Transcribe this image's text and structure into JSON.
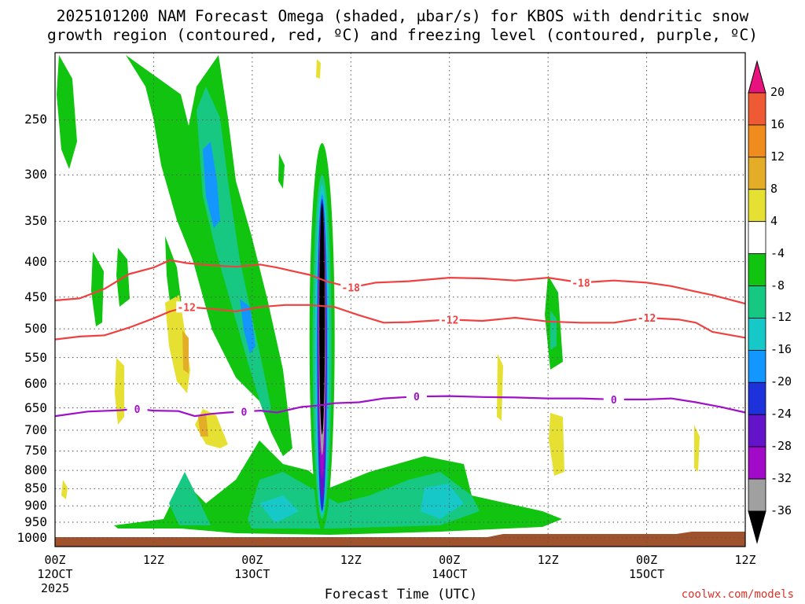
{
  "title": {
    "line1": "2025101200 NAM Forecast Omega (shaded, μbar/s) for KBOS with dendritic snow",
    "line2": "growth region (contoured, red, ºC) and freezing level (contoured, purple, ºC)"
  },
  "credit": "coolwx.com/models",
  "chart_data": {
    "type": "heatmap",
    "title": "2025101200 NAM Forecast Omega (shaded, μbar/s) for KBOS with dendritic snow growth region (contoured, red, ºC) and freezing level (contoured, purple, ºC)",
    "xlabel": "Forecast Time (UTC)",
    "year_label": "2025",
    "x_ticks": [
      {
        "line1": "00Z",
        "line2": "12OCT",
        "hour": 0
      },
      {
        "line1": "12Z",
        "line2": "",
        "hour": 12
      },
      {
        "line1": "00Z",
        "line2": "13OCT",
        "hour": 24
      },
      {
        "line1": "12Z",
        "line2": "",
        "hour": 36
      },
      {
        "line1": "00Z",
        "line2": "14OCT",
        "hour": 48
      },
      {
        "line1": "12Z",
        "line2": "",
        "hour": 60
      },
      {
        "line1": "00Z",
        "line2": "15OCT",
        "hour": 72
      },
      {
        "line1": "12Z",
        "line2": "",
        "hour": 84
      }
    ],
    "y_ticks": [
      250,
      300,
      350,
      400,
      450,
      500,
      550,
      600,
      650,
      700,
      750,
      800,
      850,
      900,
      950,
      1000
    ],
    "ylim": [
      200,
      1030
    ],
    "xlim_hours": [
      0,
      84
    ],
    "grid": true,
    "colorbar": {
      "labels": [
        20,
        16,
        12,
        8,
        4,
        -4,
        -8,
        -12,
        -16,
        -20,
        -24,
        -28,
        -32,
        -36
      ],
      "colors": [
        "#ff3860",
        "#ee5a33",
        "#f08c1e",
        "#e3ad28",
        "#e6e032",
        "#ffffff",
        "#10c410",
        "#16c882",
        "#16c8c8",
        "#1496ff",
        "#1e32dc",
        "#6414c8",
        "#a00ac8",
        "#a0a0a0"
      ],
      "top_arrow_color": "#e8127e",
      "bottom_arrow_color": "#000000"
    },
    "dendritic_contours": [
      {
        "label": "-18",
        "color": "#f04040",
        "points": [
          [
            0,
            455
          ],
          [
            3,
            452
          ],
          [
            6,
            438
          ],
          [
            9,
            417
          ],
          [
            12,
            408
          ],
          [
            14,
            398
          ],
          [
            16,
            402
          ],
          [
            19,
            405
          ],
          [
            22,
            407
          ],
          [
            25,
            404
          ],
          [
            27,
            408
          ],
          [
            31,
            418
          ],
          [
            33,
            427
          ],
          [
            36,
            436
          ],
          [
            39,
            429
          ],
          [
            43,
            427
          ],
          [
            48,
            422
          ],
          [
            52,
            423
          ],
          [
            56,
            426
          ],
          [
            60,
            422
          ],
          [
            64,
            429
          ],
          [
            68,
            426
          ],
          [
            72,
            429
          ],
          [
            75,
            434
          ],
          [
            78,
            442
          ],
          [
            80,
            447
          ],
          [
            84,
            460
          ]
        ]
      },
      {
        "label": "-12",
        "color": "#f04040",
        "points": [
          [
            0,
            518
          ],
          [
            3,
            513
          ],
          [
            6,
            511
          ],
          [
            9,
            498
          ],
          [
            12,
            483
          ],
          [
            14,
            472
          ],
          [
            16,
            465
          ],
          [
            19,
            468
          ],
          [
            22,
            472
          ],
          [
            25,
            465
          ],
          [
            28,
            462
          ],
          [
            31,
            462
          ],
          [
            34,
            465
          ],
          [
            37,
            478
          ],
          [
            40,
            490
          ],
          [
            43,
            489
          ],
          [
            48,
            485
          ],
          [
            52,
            487
          ],
          [
            56,
            482
          ],
          [
            60,
            488
          ],
          [
            64,
            490
          ],
          [
            68,
            490
          ],
          [
            72,
            482
          ],
          [
            76,
            485
          ],
          [
            78,
            490
          ],
          [
            80,
            505
          ],
          [
            84,
            515
          ]
        ]
      },
      {
        "label": "0",
        "color": "#a010c8",
        "points": [
          [
            0,
            668
          ],
          [
            4,
            658
          ],
          [
            8,
            655
          ],
          [
            10,
            652
          ],
          [
            12,
            656
          ],
          [
            15,
            657
          ],
          [
            17,
            668
          ],
          [
            19,
            663
          ],
          [
            21,
            660
          ],
          [
            23,
            658
          ],
          [
            25,
            656
          ],
          [
            27,
            660
          ],
          [
            30,
            648
          ],
          [
            32,
            645
          ],
          [
            34,
            640
          ],
          [
            37,
            638
          ],
          [
            40,
            630
          ],
          [
            44,
            626
          ],
          [
            48,
            625
          ],
          [
            52,
            627
          ],
          [
            56,
            628
          ],
          [
            60,
            630
          ],
          [
            64,
            630
          ],
          [
            68,
            632
          ],
          [
            72,
            632
          ],
          [
            75,
            630
          ],
          [
            78,
            638
          ],
          [
            81,
            648
          ],
          [
            84,
            660
          ]
        ]
      }
    ],
    "shaded_features": [
      {
        "name": "ascent-core",
        "hour": 32.5,
        "top_hpa": 330,
        "bottom_hpa": 710,
        "min_value": -36
      },
      {
        "name": "ascent-column",
        "hour": 32.5,
        "top_hpa": 270,
        "bottom_hpa": 975,
        "min_value": -8
      },
      {
        "name": "upper-ascent-band",
        "hour": 19,
        "top_hpa": 200,
        "bottom_hpa": 720,
        "min_value": -20
      }
    ],
    "terrain_color": "#a0522d"
  }
}
